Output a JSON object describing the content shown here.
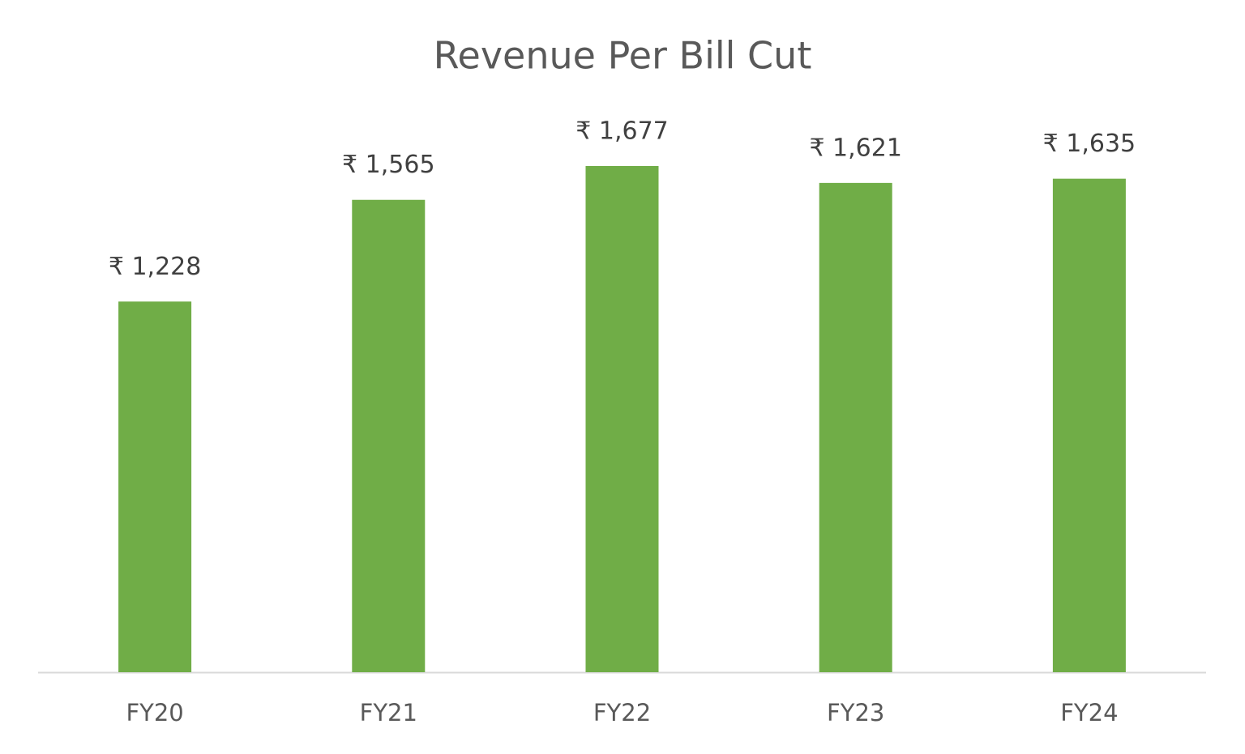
{
  "chart_data": {
    "type": "bar",
    "title": "Revenue Per Bill Cut",
    "categories": [
      "FY20",
      "FY21",
      "FY22",
      "FY23",
      "FY24"
    ],
    "values": [
      1228,
      1565,
      1677,
      1621,
      1635
    ],
    "value_labels": [
      "₹ 1,228",
      "₹ 1,565",
      "₹ 1,677",
      "₹ 1,621",
      "₹ 1,635"
    ],
    "color": "#70ad47"
  }
}
